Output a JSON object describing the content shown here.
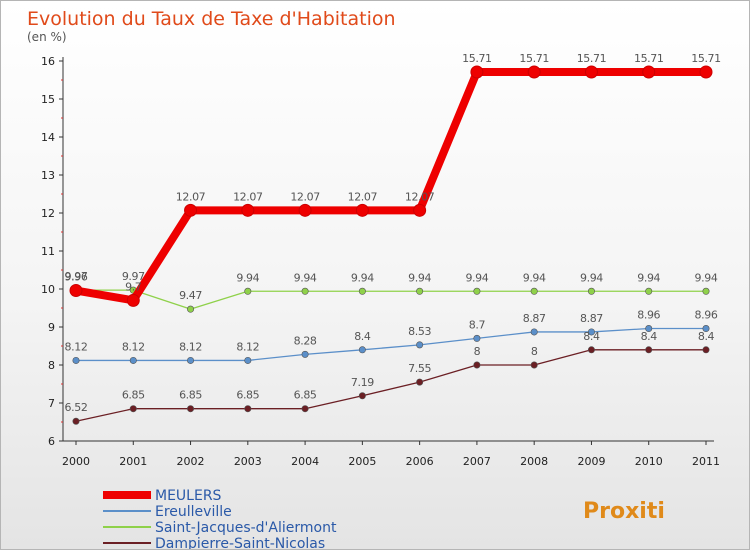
{
  "chart_data": {
    "type": "line",
    "title": "Evolution du Taux de Taxe d'Habitation",
    "subtitle": "(en %)",
    "x": [
      "2000",
      "2001",
      "2002",
      "2003",
      "2004",
      "2005",
      "2006",
      "2007",
      "2008",
      "2009",
      "2010",
      "2011"
    ],
    "ylim": [
      6,
      16
    ],
    "yticks": [
      "6",
      "7",
      "8",
      "9",
      "10",
      "11",
      "12",
      "13",
      "14",
      "15",
      "16"
    ],
    "grid": false,
    "legend_position": "bottom-left",
    "series": [
      {
        "name": "MEULERS",
        "color": "#ee0000",
        "emphasis": true,
        "values": [
          9.96,
          9.7,
          12.07,
          12.07,
          12.07,
          12.07,
          12.07,
          15.71,
          15.71,
          15.71,
          15.71,
          15.71
        ],
        "labels": [
          "9.96",
          "9.7",
          "12.07",
          "12.07",
          "12.07",
          "12.07",
          "12.07",
          "15.71",
          "15.71",
          "15.71",
          "15.71",
          "15.71"
        ]
      },
      {
        "name": "Ereulleville",
        "color": "#5b8fc9",
        "values": [
          8.12,
          8.12,
          8.12,
          8.12,
          8.28,
          8.4,
          8.53,
          8.7,
          8.87,
          8.87,
          8.96,
          8.96
        ],
        "labels": [
          "8.12",
          "8.12",
          "8.12",
          "8.12",
          "8.28",
          "8.4",
          "8.53",
          "8.7",
          "8.87",
          "8.87",
          "8.96",
          "8.96"
        ]
      },
      {
        "name": "Saint-Jacques-d'Aliermont",
        "color": "#8fd14a",
        "values": [
          9.97,
          9.97,
          9.47,
          9.94,
          9.94,
          9.94,
          9.94,
          9.94,
          9.94,
          9.94,
          9.94,
          9.94
        ],
        "labels": [
          "9.97",
          "9.97",
          "9.47",
          "9.94",
          "9.94",
          "9.94",
          "9.94",
          "9.94",
          "9.94",
          "9.94",
          "9.94",
          "9.94"
        ]
      },
      {
        "name": "Dampierre-Saint-Nicolas",
        "color": "#6b1f24",
        "values": [
          6.52,
          6.85,
          6.85,
          6.85,
          6.85,
          7.19,
          7.55,
          8,
          8,
          8.4,
          8.4,
          8.4
        ],
        "labels": [
          "6.52",
          "6.85",
          "6.85",
          "6.85",
          "6.85",
          "7.19",
          "7.55",
          "8",
          "8",
          "8.4",
          "8.4",
          "8.4"
        ]
      }
    ]
  },
  "logo": {
    "text": "Proxiti"
  }
}
